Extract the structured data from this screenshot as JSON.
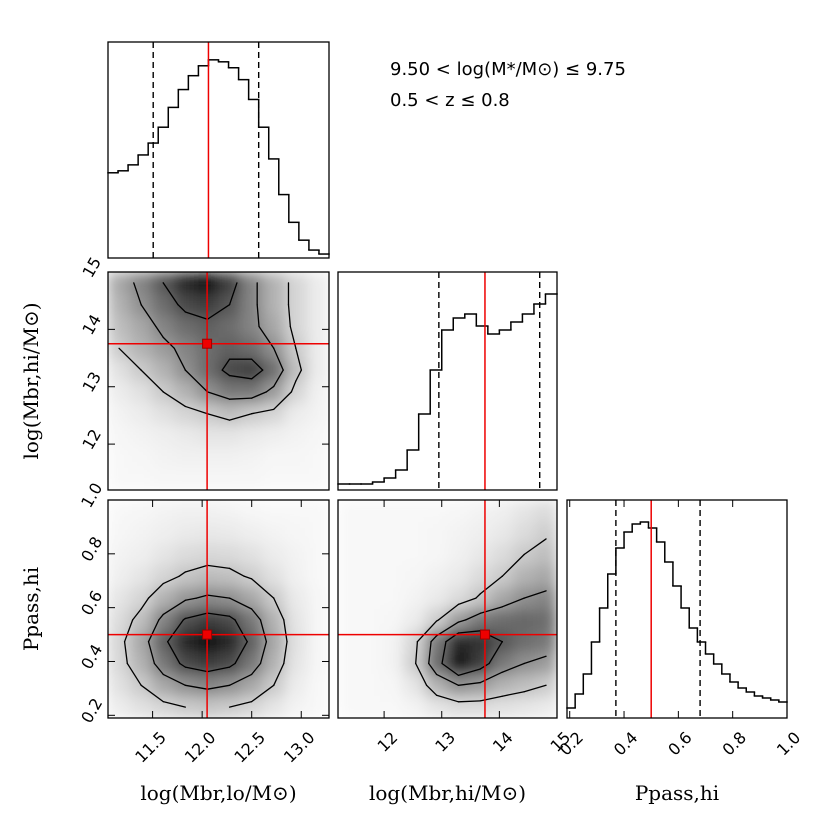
{
  "annotations": [
    "9.50 < log(M*/M⊙) ≤ 9.75",
    "0.5 < z ≤ 0.8"
  ],
  "chart_data": [
    {
      "type": "histogram",
      "xlim": [
        11.05,
        13.25
      ],
      "ylim": [
        0,
        1.09
      ],
      "bins": [
        11.05,
        11.15,
        11.25,
        11.35,
        11.45,
        11.55,
        11.65,
        11.75,
        11.85,
        11.95,
        12.05,
        12.15,
        12.25,
        12.35,
        12.45,
        12.55,
        12.65,
        12.75,
        12.85,
        12.95,
        13.05,
        13.15,
        13.25
      ],
      "counts": [
        0.43,
        0.44,
        0.47,
        0.52,
        0.58,
        0.66,
        0.76,
        0.85,
        0.92,
        0.97,
        1.0,
        0.99,
        0.96,
        0.9,
        0.8,
        0.66,
        0.5,
        0.32,
        0.18,
        0.09,
        0.04,
        0.02
      ],
      "truth": 12.05,
      "quantiles": [
        11.5,
        12.55
      ]
    },
    {
      "type": "density2d",
      "xlim": [
        11.05,
        13.28
      ],
      "ylim": [
        11.2,
        15
      ],
      "yticks": [
        12,
        13,
        14,
        15
      ],
      "ylabel": "log(Mbr,hi/M⊙)",
      "levels": [
        0.2,
        0.45,
        0.7
      ],
      "truth": [
        12.05,
        13.75
      ],
      "density": [
        [
          0.35,
          0.5,
          0.7,
          0.9,
          1.0,
          0.8,
          0.5,
          0.3,
          0.15,
          0.05
        ],
        [
          0.3,
          0.45,
          0.6,
          0.75,
          0.8,
          0.7,
          0.5,
          0.3,
          0.15,
          0.05
        ],
        [
          0.25,
          0.35,
          0.5,
          0.6,
          0.65,
          0.6,
          0.5,
          0.35,
          0.15,
          0.05
        ],
        [
          0.2,
          0.3,
          0.4,
          0.5,
          0.6,
          0.65,
          0.6,
          0.45,
          0.2,
          0.05
        ],
        [
          0.1,
          0.2,
          0.3,
          0.45,
          0.6,
          0.75,
          0.8,
          0.6,
          0.25,
          0.05
        ],
        [
          0.05,
          0.1,
          0.2,
          0.3,
          0.45,
          0.55,
          0.55,
          0.4,
          0.15,
          0.03
        ],
        [
          0.02,
          0.05,
          0.1,
          0.15,
          0.2,
          0.25,
          0.2,
          0.15,
          0.05,
          0.02
        ],
        [
          0.01,
          0.02,
          0.04,
          0.06,
          0.08,
          0.08,
          0.06,
          0.04,
          0.02,
          0.01
        ],
        [
          0,
          0.01,
          0.02,
          0.03,
          0.03,
          0.03,
          0.02,
          0.01,
          0.01,
          0
        ],
        [
          0,
          0,
          0.01,
          0.01,
          0.01,
          0.01,
          0.01,
          0,
          0,
          0
        ]
      ]
    },
    {
      "type": "histogram",
      "xlim": [
        11.2,
        15
      ],
      "ylim": [
        0,
        1.09
      ],
      "bins": [
        11.2,
        11.4,
        11.6,
        11.8,
        12.0,
        12.2,
        12.4,
        12.6,
        12.8,
        13.0,
        13.2,
        13.4,
        13.6,
        13.8,
        14.0,
        14.2,
        14.4,
        14.6,
        14.8,
        15.0
      ],
      "counts": [
        0.03,
        0.03,
        0.03,
        0.04,
        0.06,
        0.1,
        0.2,
        0.38,
        0.6,
        0.8,
        0.86,
        0.88,
        0.82,
        0.78,
        0.8,
        0.84,
        0.88,
        0.93,
        0.98
      ],
      "truth": 13.75,
      "quantiles": [
        12.95,
        14.7
      ]
    },
    {
      "type": "density2d",
      "xlim": [
        11.05,
        13.28
      ],
      "ylim": [
        0.19,
        1.0
      ],
      "xticks": [
        11.5,
        {
          "value": 12,
          "label": "12.0"
        },
        12.5,
        {
          "value": 13,
          "label": "13.0"
        }
      ],
      "yticks": [
        0.2,
        0.4,
        0.6,
        0.8,
        {
          "value": 1,
          "label": "1.0"
        }
      ],
      "xlabel": "log(Mbr,lo/M⊙)",
      "ylabel": "Ppass,hi",
      "levels": [
        0.2,
        0.45,
        0.7
      ],
      "truth": [
        12.05,
        0.5
      ],
      "density": [
        [
          0,
          0.01,
          0.02,
          0.03,
          0.03,
          0.02,
          0.01,
          0,
          0,
          0
        ],
        [
          0.01,
          0.02,
          0.04,
          0.06,
          0.07,
          0.06,
          0.04,
          0.02,
          0.01,
          0
        ],
        [
          0.02,
          0.04,
          0.08,
          0.12,
          0.14,
          0.13,
          0.1,
          0.05,
          0.02,
          0
        ],
        [
          0.04,
          0.08,
          0.15,
          0.22,
          0.26,
          0.24,
          0.18,
          0.1,
          0.03,
          0
        ],
        [
          0.08,
          0.15,
          0.3,
          0.42,
          0.48,
          0.45,
          0.35,
          0.2,
          0.06,
          0.01
        ],
        [
          0.12,
          0.25,
          0.5,
          0.72,
          0.8,
          0.75,
          0.55,
          0.3,
          0.08,
          0.01
        ],
        [
          0.15,
          0.35,
          0.65,
          0.9,
          1.0,
          0.9,
          0.65,
          0.35,
          0.1,
          0.01
        ],
        [
          0.14,
          0.3,
          0.55,
          0.75,
          0.82,
          0.75,
          0.55,
          0.3,
          0.08,
          0.01
        ],
        [
          0.1,
          0.2,
          0.35,
          0.45,
          0.5,
          0.45,
          0.35,
          0.2,
          0.05,
          0
        ],
        [
          0.05,
          0.1,
          0.15,
          0.2,
          0.22,
          0.2,
          0.15,
          0.08,
          0.02,
          0
        ]
      ]
    },
    {
      "type": "density2d",
      "xlim": [
        11.2,
        15
      ],
      "ylim": [
        0.19,
        1.0
      ],
      "xticks": [
        12,
        13,
        14,
        15
      ],
      "xlabel": "log(Mbr,hi/M⊙)",
      "levels": [
        0.2,
        0.45,
        0.7
      ],
      "truth": [
        13.75,
        0.5
      ],
      "density": [
        [
          0,
          0,
          0,
          0,
          0,
          0.01,
          0.02,
          0.04,
          0.08,
          0.12
        ],
        [
          0,
          0,
          0,
          0,
          0.01,
          0.02,
          0.04,
          0.07,
          0.12,
          0.18
        ],
        [
          0,
          0,
          0,
          0,
          0.01,
          0.03,
          0.07,
          0.12,
          0.2,
          0.25
        ],
        [
          0,
          0,
          0,
          0.01,
          0.03,
          0.06,
          0.12,
          0.2,
          0.3,
          0.35
        ],
        [
          0,
          0,
          0,
          0.02,
          0.06,
          0.12,
          0.22,
          0.35,
          0.45,
          0.5
        ],
        [
          0,
          0,
          0.01,
          0.05,
          0.18,
          0.4,
          0.55,
          0.6,
          0.62,
          0.6
        ],
        [
          0,
          0,
          0.02,
          0.15,
          0.55,
          0.9,
          0.85,
          0.7,
          0.6,
          0.55
        ],
        [
          0,
          0,
          0.02,
          0.18,
          0.6,
          1.0,
          0.8,
          0.55,
          0.45,
          0.4
        ],
        [
          0,
          0,
          0.01,
          0.08,
          0.3,
          0.45,
          0.4,
          0.3,
          0.25,
          0.2
        ],
        [
          0,
          0,
          0,
          0.02,
          0.08,
          0.12,
          0.12,
          0.1,
          0.08,
          0.06
        ]
      ]
    },
    {
      "type": "histogram",
      "xlim": [
        0.19,
        1.0
      ],
      "ylim": [
        0,
        1.09
      ],
      "xticks": [
        0.2,
        0.4,
        0.6,
        0.8,
        {
          "value": 1,
          "label": "1.0"
        }
      ],
      "xlabel": "Ppass,hi",
      "bins": [
        0.19,
        0.22,
        0.25,
        0.28,
        0.31,
        0.34,
        0.37,
        0.4,
        0.43,
        0.46,
        0.49,
        0.52,
        0.55,
        0.58,
        0.61,
        0.64,
        0.67,
        0.7,
        0.73,
        0.76,
        0.79,
        0.82,
        0.85,
        0.88,
        0.91,
        0.94,
        0.97,
        1.0
      ],
      "counts": [
        0.05,
        0.12,
        0.22,
        0.38,
        0.55,
        0.72,
        0.85,
        0.93,
        0.97,
        0.98,
        0.95,
        0.88,
        0.78,
        0.66,
        0.55,
        0.45,
        0.38,
        0.32,
        0.27,
        0.22,
        0.18,
        0.15,
        0.13,
        0.11,
        0.1,
        0.09,
        0.08
      ],
      "truth": 0.5,
      "quantiles": [
        0.37,
        0.68
      ]
    }
  ]
}
